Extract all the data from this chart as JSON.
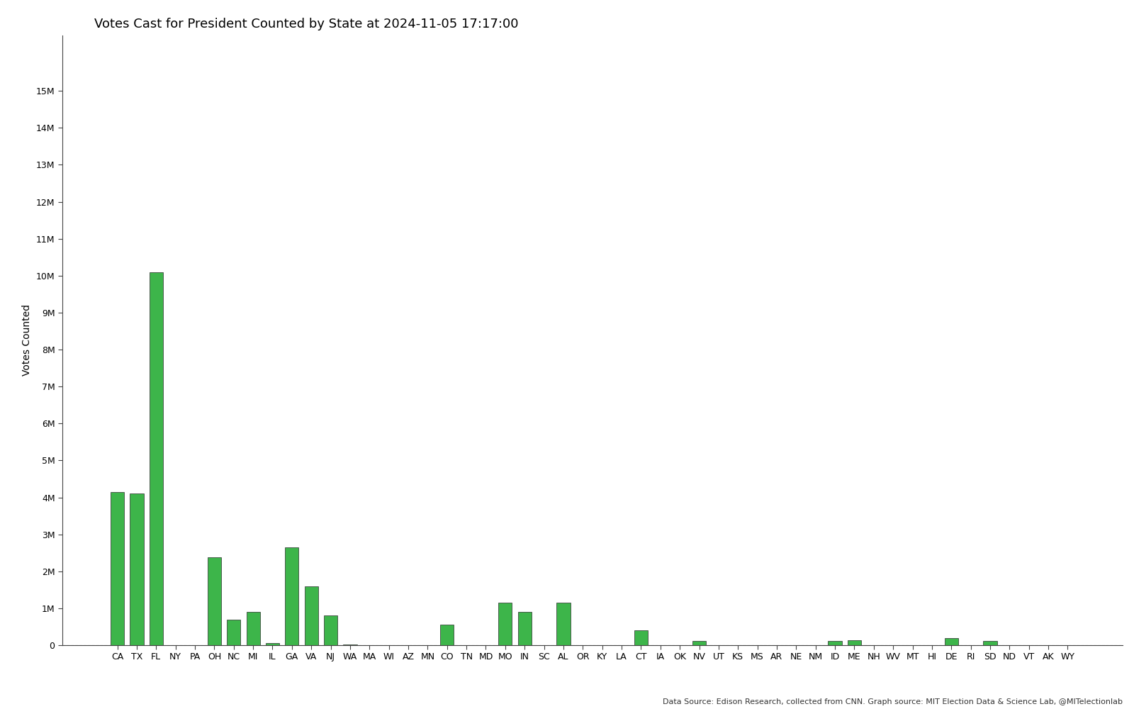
{
  "title": "Votes Cast for President Counted by State at 2024-11-05 17:17:00",
  "ylabel": "Votes Counted",
  "footer": "Data Source: Edison Research, collected from CNN. Graph source: MIT Election Data & Science Lab, @MITelectionlab",
  "states": [
    "CA",
    "TX",
    "FL",
    "NY",
    "PA",
    "OH",
    "NC",
    "MI",
    "IL",
    "GA",
    "VA",
    "NJ",
    "WA",
    "MA",
    "WI",
    "AZ",
    "MN",
    "CO",
    "TN",
    "MD",
    "MO",
    "IN",
    "SC",
    "AL",
    "OR",
    "KY",
    "LA",
    "CT",
    "IA",
    "OK",
    "NV",
    "UT",
    "KS",
    "MS",
    "AR",
    "NE",
    "NM",
    "ID",
    "ME",
    "NH",
    "WV",
    "MT",
    "HI",
    "DE",
    "RI",
    "SD",
    "ND",
    "VT",
    "AK",
    "WY"
  ],
  "values": [
    4150000,
    4100000,
    10100000,
    0,
    0,
    2380000,
    700000,
    900000,
    60000,
    2650000,
    1590000,
    800000,
    20000,
    0,
    0,
    0,
    0,
    550000,
    0,
    0,
    1150000,
    900000,
    0,
    1160000,
    0,
    0,
    0,
    400000,
    0,
    0,
    120000,
    0,
    0,
    0,
    0,
    0,
    0,
    110000,
    130000,
    0,
    0,
    0,
    0,
    200000,
    0,
    115000,
    0,
    0,
    0,
    0
  ],
  "bar_color": "#3db54a",
  "bar_edge_color": "#2a2a2a",
  "background_color": "#ffffff",
  "title_fontsize": 13,
  "ylabel_fontsize": 10,
  "tick_fontsize": 9,
  "footer_fontsize": 8,
  "ylim_max": 16500000,
  "ytick_max": 15000000,
  "ytick_interval": 1000000,
  "dashed_line_color": "#888888",
  "spine_color": "#444444"
}
